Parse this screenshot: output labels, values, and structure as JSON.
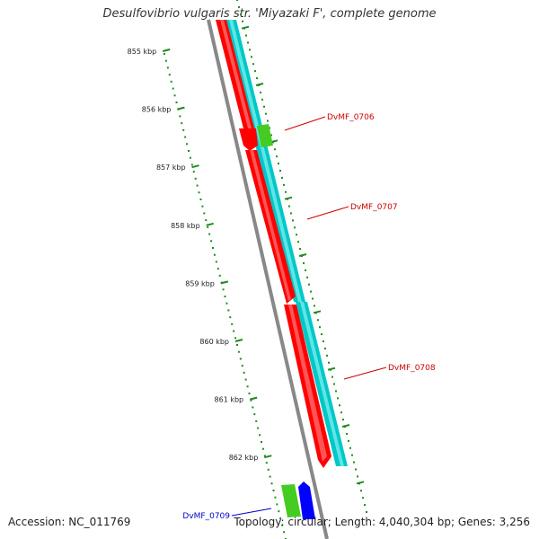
{
  "title": "Desulfovibrio vulgaris str. 'Miyazaki F', complete genome",
  "colors": {
    "backbone": "#888888",
    "tick": "#1f8a1f",
    "forward_cds": "#ff0000",
    "reverse_cds": "#00c8c8",
    "gene_green": "#44cc22",
    "gene_blue": "#0000ff",
    "label_red": "#cc0000",
    "label_blue": "#0000cc"
  },
  "ticks": [
    "855 kbp",
    "856 kbp",
    "857 kbp",
    "858 kbp",
    "859 kbp",
    "860 kbp",
    "861 kbp",
    "862 kbp"
  ],
  "genes": [
    {
      "label": "DvMF_0706",
      "color": "#cc0000"
    },
    {
      "label": "DvMF_0707",
      "color": "#cc0000"
    },
    {
      "label": "DvMF_0708",
      "color": "#cc0000"
    },
    {
      "label": "DvMF_0709",
      "color": "#0000cc"
    }
  ],
  "footer": {
    "accession": "Accession: NC_011769",
    "genome_info": "Topology: circular; Length: 4,040,304 bp; Genes: 3,256"
  }
}
